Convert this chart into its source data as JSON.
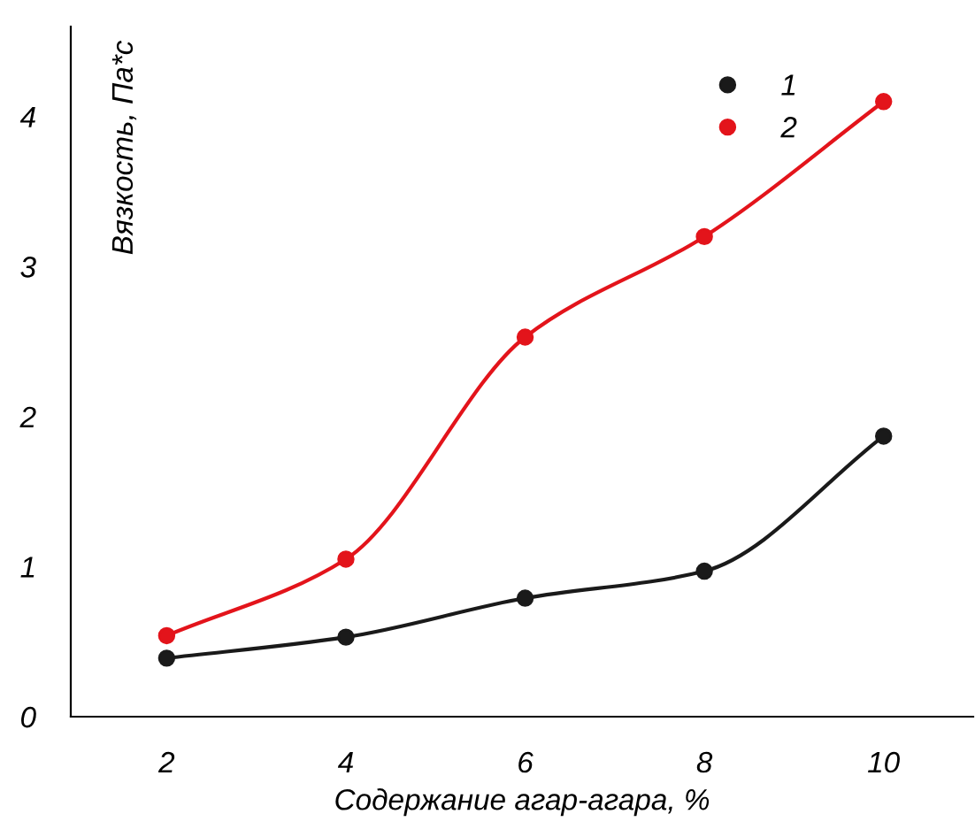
{
  "chart_data": {
    "type": "line",
    "xlabel": "Содержание агар-агара, %",
    "ylabel": "Вязкость, Па*с",
    "x": [
      2,
      4,
      6,
      8,
      10
    ],
    "series": [
      {
        "name": "1",
        "color": "#1a1a1a",
        "values": [
          0.39,
          0.53,
          0.79,
          0.97,
          1.87
        ]
      },
      {
        "name": "2",
        "color": "#e3141b",
        "values": [
          0.54,
          1.05,
          2.53,
          3.2,
          4.1
        ]
      }
    ],
    "xlim": [
      0.93,
      11
    ],
    "xticks": [
      2,
      4,
      6,
      8,
      10
    ],
    "ylim": [
      0,
      4.6
    ],
    "yticks": [
      0,
      1,
      2,
      3,
      4
    ],
    "grid": false,
    "legend": "top",
    "marker": "circle",
    "line_style": "solid"
  }
}
